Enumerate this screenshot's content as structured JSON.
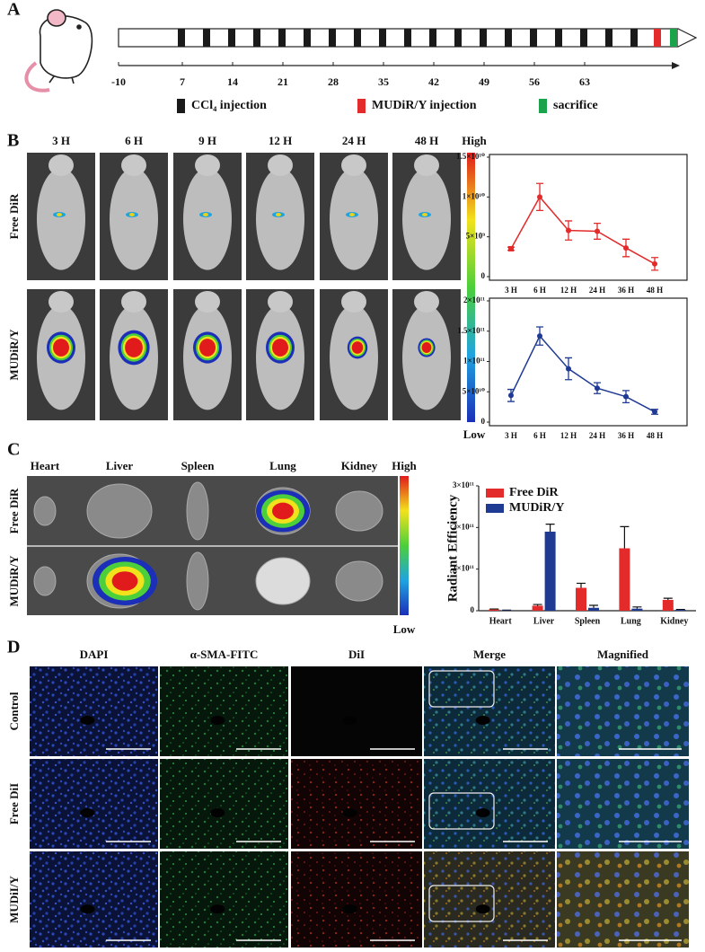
{
  "panel_labels": [
    "A",
    "B",
    "C",
    "D"
  ],
  "timeline": {
    "ticks": [
      -10,
      7,
      14,
      21,
      28,
      35,
      42,
      49,
      56,
      63
    ],
    "legend": [
      {
        "label": "CCl₄ injection",
        "color": "#1a1a1a"
      },
      {
        "label": "MUDiR/Y injection",
        "color": "#e32b2b"
      },
      {
        "label": "sacrifice",
        "color": "#1aa34a"
      }
    ]
  },
  "panel_b": {
    "timepoints": [
      "3 H",
      "6 H",
      "9 H",
      "12 H",
      "24 H",
      "48 H"
    ],
    "high": "High",
    "low": "Low",
    "rows": [
      "Free DiR",
      "MUDiR/Y"
    ]
  },
  "panel_c": {
    "organs": [
      "Heart",
      "Liver",
      "Spleen",
      "Lung",
      "Kidney"
    ],
    "high": "High",
    "low": "Low",
    "rows": [
      "Free DiR",
      "MUDiR/Y"
    ]
  },
  "panel_d": {
    "columns": [
      "DAPI",
      "α-SMA-FITC",
      "DiI",
      "Merge",
      "Magnified"
    ],
    "rows": [
      "Control",
      "Free DiI",
      "MUDiI/Y"
    ]
  },
  "chart_data": [
    {
      "type": "line",
      "categories": [
        "3 H",
        "6 H",
        "12 H",
        "24 H",
        "36 H",
        "48 H"
      ],
      "series": [
        {
          "color": "#e32b2b",
          "values": [
            3500000000.0,
            10000000000.0,
            5800000000.0,
            5700000000.0,
            3600000000.0,
            1600000000.0
          ],
          "errors": [
            200000000.0,
            1700000000.0,
            1200000000.0,
            1000000000.0,
            1100000000.0,
            800000000.0
          ]
        }
      ],
      "ylim": [
        0,
        15000000000.0
      ],
      "yticks": [
        0,
        {
          "value": 5000000000.0,
          "label": "5×10⁹"
        },
        {
          "value": 10000000000.0,
          "label": "1×10¹⁰"
        },
        {
          "value": 15000000000.0,
          "label": "1.5×10¹⁰"
        }
      ]
    },
    {
      "type": "line",
      "categories": [
        "3 H",
        "6 H",
        "12 H",
        "24 H",
        "36 H",
        "48 H"
      ],
      "series": [
        {
          "color": "#1f3a93",
          "values": [
            44000000000.0,
            142000000000.0,
            88000000000.0,
            56000000000.0,
            42000000000.0,
            17000000000.0
          ],
          "errors": [
            10000000000.0,
            15000000000.0,
            18000000000.0,
            9000000000.0,
            10000000000.0,
            4000000000.0
          ]
        }
      ],
      "ylim": [
        0,
        200000000000.0
      ],
      "yticks": [
        0,
        {
          "value": 50000000000.0,
          "label": "5×10¹⁰"
        },
        {
          "value": 100000000000.0,
          "label": "1×10¹¹"
        },
        {
          "value": 150000000000.0,
          "label": "1.5×10¹¹"
        },
        {
          "value": 200000000000.0,
          "label": "2×10¹¹"
        }
      ]
    },
    {
      "type": "bar",
      "y_label": "Radiant Efficiency",
      "categories": [
        "Heart",
        "Liver",
        "Spleen",
        "Lung",
        "Kidney"
      ],
      "series": [
        {
          "name": "Free DiR",
          "color": "#e32b2b",
          "values": [
            3000000000.0,
            12000000000.0,
            55000000000.0,
            150000000000.0,
            26000000000.0
          ],
          "errors": [
            1000000000.0,
            3000000000.0,
            11000000000.0,
            52000000000.0,
            4000000000.0
          ]
        },
        {
          "name": "MUDiR/Y",
          "color": "#1f3a93",
          "values": [
            1000000000.0,
            190000000000.0,
            7000000000.0,
            5000000000.0,
            2000000000.0
          ],
          "errors": [
            500000000.0,
            18000000000.0,
            6000000000.0,
            4000000000.0,
            1000000000.0
          ]
        }
      ],
      "ylim": [
        0,
        300000000000.0
      ],
      "yticks": [
        0,
        {
          "value": 100000000000.0,
          "label": "1×10¹¹"
        },
        {
          "value": 200000000000.0,
          "label": "2×10¹¹"
        },
        {
          "value": 300000000000.0,
          "label": "3×10¹¹"
        }
      ],
      "legend": "upper left"
    }
  ]
}
